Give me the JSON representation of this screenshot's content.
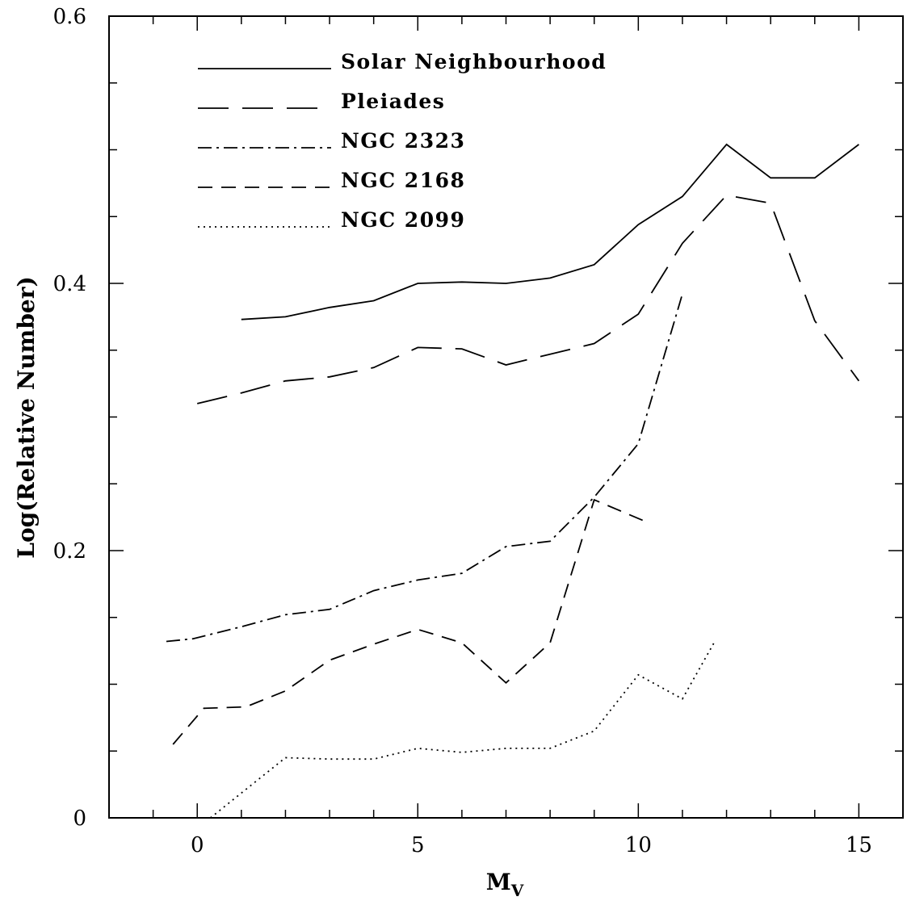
{
  "chart_data": {
    "type": "line",
    "xlabel": "M",
    "xlabel_sub": "V",
    "ylabel": "Log(Relative Number)",
    "xlim": [
      -2,
      16
    ],
    "ylim": [
      0,
      0.6
    ],
    "x_ticks": [
      0,
      5,
      10,
      15
    ],
    "x_tick_labels": [
      "0",
      "5",
      "10",
      "15"
    ],
    "y_ticks": [
      0,
      0.2,
      0.4,
      0.6
    ],
    "y_tick_labels": [
      "0",
      "0.2",
      "0.4",
      "0.6"
    ],
    "grid": false,
    "legend_position": "top-left",
    "series": [
      {
        "name": "Solar Neighbourhood",
        "dash": "solid",
        "x": [
          1,
          2,
          3,
          4,
          5,
          6,
          7,
          8,
          9,
          10,
          11,
          12,
          13,
          14,
          15
        ],
        "y": [
          0.373,
          0.375,
          0.382,
          0.387,
          0.4,
          0.401,
          0.4,
          0.404,
          0.414,
          0.444,
          0.465,
          0.504,
          0.479,
          0.479,
          0.504
        ]
      },
      {
        "name": "Pleiades",
        "dash": "long-dash",
        "x": [
          0,
          1,
          2,
          3,
          4,
          5,
          6,
          7,
          8,
          9,
          10,
          11,
          12,
          13,
          14,
          15
        ],
        "y": [
          0.31,
          0.318,
          0.327,
          0.33,
          0.337,
          0.352,
          0.351,
          0.339,
          0.347,
          0.355,
          0.377,
          0.43,
          0.466,
          0.46,
          0.372,
          0.327
        ]
      },
      {
        "name": "NGC 2323",
        "dash": "dash-dot",
        "x": [
          -0.7,
          -0.1,
          1,
          2,
          3,
          4,
          5,
          6,
          7,
          8,
          9,
          10,
          11
        ],
        "y": [
          0.132,
          0.134,
          0.143,
          0.152,
          0.156,
          0.17,
          0.178,
          0.183,
          0.203,
          0.207,
          0.24,
          0.28,
          0.392
        ]
      },
      {
        "name": "NGC 2168",
        "dash": "short-dash",
        "x": [
          -0.55,
          0.15,
          1.1,
          2,
          3,
          4,
          5,
          6,
          7,
          8,
          9,
          10.15
        ],
        "y": [
          0.055,
          0.082,
          0.083,
          0.095,
          0.118,
          0.13,
          0.141,
          0.131,
          0.101,
          0.131,
          0.238,
          0.222
        ]
      },
      {
        "name": "NGC 2099",
        "dash": "dotted",
        "x": [
          0.3,
          2,
          3,
          4,
          5,
          6,
          7,
          8,
          9,
          10,
          11,
          11.75
        ],
        "y": [
          0,
          0.045,
          0.044,
          0.044,
          0.052,
          0.049,
          0.052,
          0.052,
          0.065,
          0.107,
          0.089,
          0.133
        ]
      }
    ]
  }
}
